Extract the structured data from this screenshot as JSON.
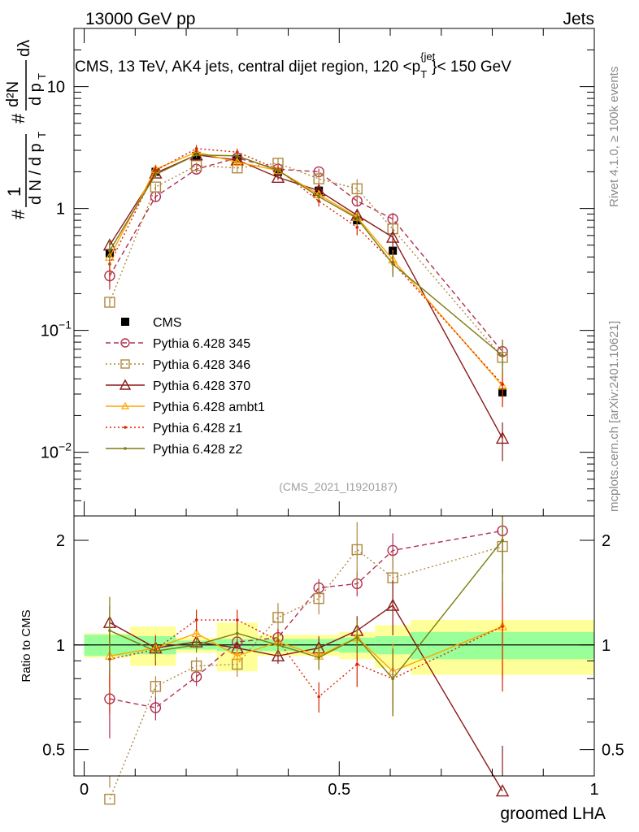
{
  "header": {
    "left": "13000 GeV pp",
    "right": "Jets",
    "title_prefix": "CMS, 13 TeV, AK4 jets, central dijet region, 120 <",
    "title_var": "p",
    "title_sup": "{jet",
    "title_sub": "T",
    "title_suffix": "}< 150 GeV",
    "analysis_id": "(CMS_2021_I1920187)",
    "side_text_top": "Rivet 4.1.0, ≥ 100k events",
    "side_text_bottom": "mcplots.cern.ch [arXiv:2401.10621]"
  },
  "y_axis_upper": {
    "num_hash": "#",
    "num_one": "1",
    "den": "d N / d p",
    "den_sub": "T",
    "frac2_hash": "#",
    "frac2_num": "d²N",
    "frac2_den": "d p",
    "frac2_den_sub": "T",
    "frac2_tail": "dλ",
    "ticks": [
      {
        "base": "10",
        "exp": "−2",
        "value": 0.01
      },
      {
        "base": "10",
        "exp": "−1",
        "value": 0.1
      },
      {
        "base": "1",
        "exp": "",
        "value": 1
      },
      {
        "base": "10",
        "exp": "",
        "value": 10
      }
    ]
  },
  "y_axis_lower": {
    "label": "Ratio to CMS",
    "ticks_left": [
      "0.5",
      "1",
      "2"
    ],
    "ticks_right": [
      "0.5",
      "1",
      "2"
    ]
  },
  "x_axis": {
    "label": "groomed LHA",
    "ticks": [
      "0",
      "0.5",
      "1"
    ]
  },
  "legend": [
    {
      "key": "cms",
      "label": "CMS"
    },
    {
      "key": "p345",
      "label": "Pythia 6.428 345"
    },
    {
      "key": "p346",
      "label": "Pythia 6.428 346"
    },
    {
      "key": "p370",
      "label": "Pythia 6.428 370"
    },
    {
      "key": "ambt1",
      "label": "Pythia 6.428 ambt1"
    },
    {
      "key": "z1",
      "label": "Pythia 6.428 z1"
    },
    {
      "key": "z2",
      "label": "Pythia 6.428 z2"
    }
  ],
  "colors": {
    "cms": "#000000",
    "p345": "#b03050",
    "p346": "#b08840",
    "p370": "#8b1a1a",
    "ambt1": "#ffa500",
    "z1": "#dd2200",
    "z2": "#7c7c10",
    "band_inner": "#99ff99",
    "band_outer": "#ffff99"
  },
  "chart_data": {
    "type": "line",
    "title": "CMS, 13 TeV, AK4 jets, central dijet region, 120 < pT(jet) < 150 GeV",
    "xlabel": "groomed LHA",
    "ylabel": "(1/dN/dpT) d²N/dpT dλ",
    "ratio_ylabel": "Ratio to CMS",
    "xlim": [
      -0.02,
      1.0
    ],
    "ylim": [
      0.003,
      30
    ],
    "yscale": "log",
    "ratio_ylim": [
      0.42,
      2.35
    ],
    "x": [
      0.05,
      0.14,
      0.22,
      0.3,
      0.38,
      0.46,
      0.535,
      0.605,
      0.82
    ],
    "band_edges": [
      0.0,
      0.09,
      0.18,
      0.26,
      0.34,
      0.42,
      0.5,
      0.57,
      0.64,
      1.0
    ],
    "band_inner": [
      0.07,
      0.06,
      0.03,
      0.04,
      0.04,
      0.04,
      0.05,
      0.06,
      0.09
    ],
    "band_outer": [
      0.08,
      0.13,
      0.05,
      0.16,
      0.07,
      0.07,
      0.09,
      0.14,
      0.18
    ],
    "series": [
      {
        "key": "cms",
        "name": "CMS",
        "values": [
          0.43,
          2.0,
          2.7,
          2.55,
          2.0,
          1.4,
          0.8,
          0.45,
          0.031
        ],
        "ratio": [
          1.0,
          1.0,
          1.0,
          1.0,
          1.0,
          1.0,
          1.0,
          1.0,
          1.0
        ]
      },
      {
        "key": "p345",
        "name": "Pythia 6.428 345",
        "values": [
          0.28,
          1.25,
          2.1,
          2.6,
          2.1,
          2.0,
          1.15,
          0.82,
          0.067
        ],
        "ratio": [
          0.7,
          0.66,
          0.81,
          1.02,
          1.05,
          1.46,
          1.5,
          1.87,
          2.13
        ],
        "err": [
          0.23,
          0.08,
          0.06,
          0.05,
          0.05,
          0.06,
          0.08,
          0.12,
          0.25
        ]
      },
      {
        "key": "p346",
        "name": "Pythia 6.428 346",
        "values": [
          0.17,
          1.5,
          2.25,
          2.15,
          2.35,
          1.75,
          1.45,
          0.68,
          0.06
        ],
        "ratio": [
          0.36,
          0.76,
          0.87,
          0.88,
          1.2,
          1.36,
          1.88,
          1.56,
          1.92
        ],
        "err": [
          0.08,
          0.07,
          0.06,
          0.08,
          0.1,
          0.1,
          0.2,
          0.16,
          0.3
        ]
      },
      {
        "key": "p370",
        "name": "Pythia 6.428 370",
        "values": [
          0.5,
          1.95,
          2.75,
          2.5,
          1.8,
          1.4,
          0.88,
          0.58,
          0.013
        ],
        "ratio": [
          1.16,
          0.98,
          1.02,
          0.98,
          0.93,
          0.98,
          1.1,
          1.3,
          0.38
        ],
        "err": [
          0.12,
          0.06,
          0.05,
          0.05,
          0.05,
          0.08,
          0.1,
          0.18,
          0.35
        ]
      },
      {
        "key": "ambt1",
        "name": "Pythia 6.428 ambt1",
        "values": [
          0.4,
          2.1,
          2.9,
          2.4,
          2.05,
          1.3,
          0.85,
          0.38,
          0.035
        ],
        "ratio": [
          0.93,
          0.98,
          1.08,
          0.93,
          1.02,
          0.93,
          1.05,
          0.84,
          1.13
        ],
        "err": [
          0.25,
          0.07,
          0.05,
          0.05,
          0.06,
          0.08,
          0.1,
          0.2,
          0.3
        ]
      },
      {
        "key": "z1",
        "name": "Pythia 6.428 z1",
        "values": [
          0.35,
          2.05,
          3.1,
          2.9,
          2.1,
          1.15,
          0.7,
          0.36,
          0.036
        ],
        "ratio": [
          0.91,
          0.97,
          1.18,
          1.18,
          1.03,
          0.71,
          0.88,
          0.8,
          1.13
        ],
        "err": [
          0.3,
          0.1,
          0.07,
          0.07,
          0.08,
          0.1,
          0.14,
          0.22,
          0.35
        ]
      },
      {
        "key": "z2",
        "name": "Pythia 6.428 z2",
        "values": [
          0.45,
          1.9,
          2.75,
          2.7,
          2.05,
          1.25,
          0.83,
          0.35,
          0.062
        ],
        "ratio": [
          1.1,
          0.96,
          1.0,
          1.08,
          1.0,
          0.92,
          1.05,
          0.8,
          2.0
        ],
        "err": [
          0.25,
          0.07,
          0.05,
          0.05,
          0.06,
          0.08,
          0.12,
          0.22,
          0.32
        ]
      }
    ]
  }
}
